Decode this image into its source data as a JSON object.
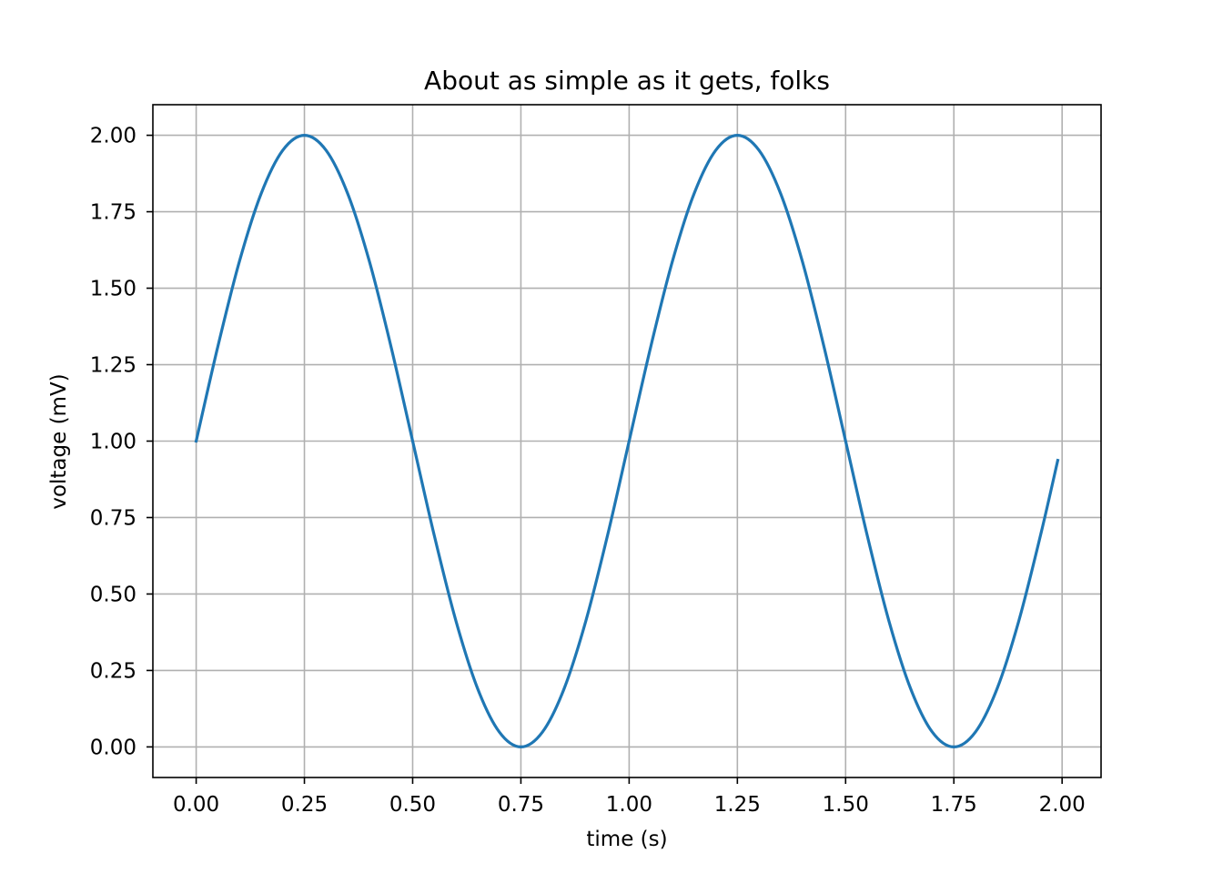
{
  "chart_data": {
    "type": "line",
    "title": "About as simple as it gets, folks",
    "xlabel": "time (s)",
    "ylabel": "voltage (mV)",
    "xlim": [
      -0.1,
      2.09
    ],
    "ylim": [
      -0.1,
      2.1
    ],
    "grid": true,
    "x_ticks": [
      0.0,
      0.25,
      0.5,
      0.75,
      1.0,
      1.25,
      1.5,
      1.75,
      2.0
    ],
    "x_tick_labels": [
      "0.00",
      "0.25",
      "0.50",
      "0.75",
      "1.00",
      "1.25",
      "1.50",
      "1.75",
      "2.00"
    ],
    "y_ticks": [
      0.0,
      0.25,
      0.5,
      0.75,
      1.0,
      1.25,
      1.5,
      1.75,
      2.0
    ],
    "y_tick_labels": [
      "0.00",
      "0.25",
      "0.50",
      "0.75",
      "1.00",
      "1.25",
      "1.50",
      "1.75",
      "2.00"
    ],
    "series": [
      {
        "color": "#1f77b4",
        "x": [
          0.0,
          0.05,
          0.1,
          0.15,
          0.2,
          0.25,
          0.3,
          0.35,
          0.4,
          0.45,
          0.5,
          0.55,
          0.6,
          0.65,
          0.7,
          0.75,
          0.8,
          0.85,
          0.9,
          0.95,
          1.0,
          1.05,
          1.1,
          1.15,
          1.2,
          1.25,
          1.3,
          1.35,
          1.4,
          1.45,
          1.5,
          1.55,
          1.6,
          1.65,
          1.7,
          1.75,
          1.8,
          1.85,
          1.9,
          1.95,
          1.99
        ],
        "y": [
          1.0,
          1.309,
          1.588,
          1.809,
          1.951,
          2.0,
          1.951,
          1.809,
          1.588,
          1.309,
          1.0,
          0.691,
          0.412,
          0.191,
          0.049,
          0.0,
          0.049,
          0.191,
          0.412,
          0.691,
          1.0,
          1.309,
          1.588,
          1.809,
          1.951,
          2.0,
          1.951,
          1.809,
          1.588,
          1.309,
          1.0,
          0.691,
          0.412,
          0.191,
          0.049,
          0.0,
          0.049,
          0.191,
          0.412,
          0.691,
          0.937
        ]
      }
    ]
  }
}
